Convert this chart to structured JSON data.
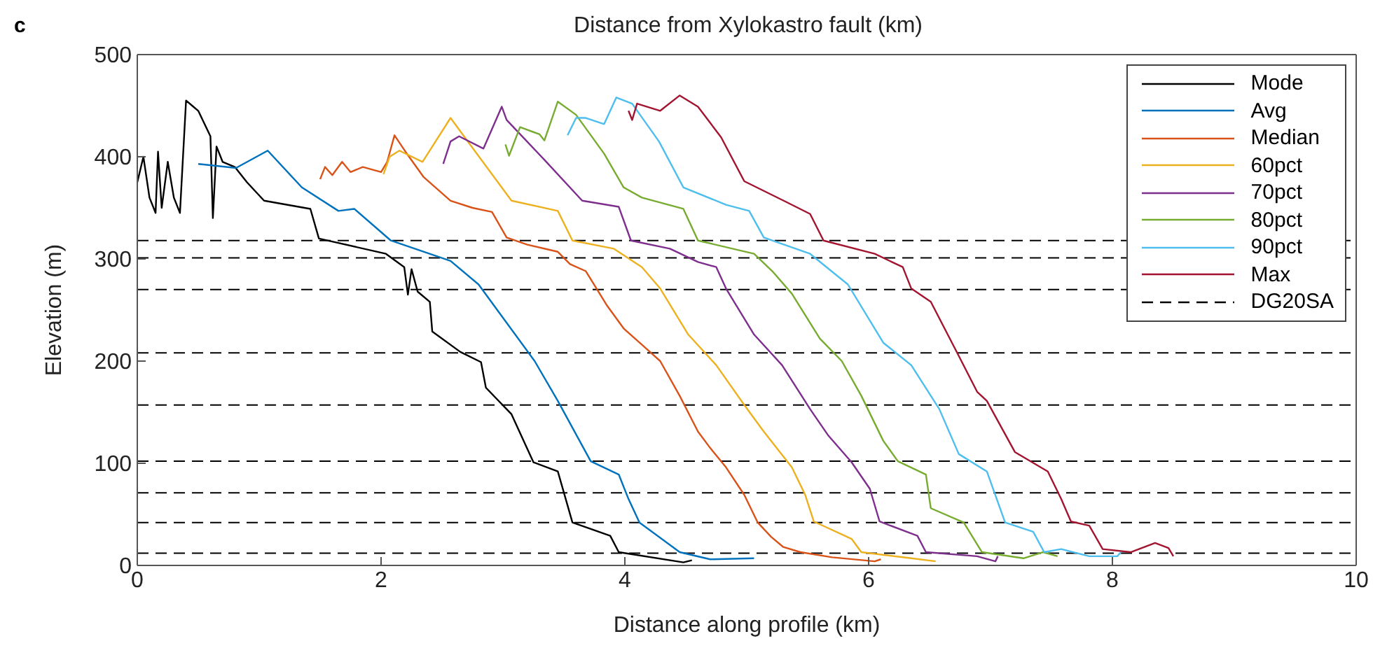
{
  "chart_data": {
    "type": "line",
    "x2label": "Distance from Xylokastro fault (km)",
    "xlabel": "Distance along profile (km)",
    "ylabel": "Elevation (m)",
    "annotations": [
      "c"
    ],
    "xlim": [
      0,
      10
    ],
    "xticks": [
      0,
      2,
      4,
      6,
      8,
      10
    ],
    "ylim": [
      0,
      500
    ],
    "yticks": [
      0,
      100,
      200,
      300,
      400,
      500
    ],
    "legend": "top right",
    "marker": "none",
    "line_style": "solid",
    "series": [
      {
        "name": "Mode",
        "color": "#000000",
        "x": [
          0,
          0.05,
          0.1,
          0.15,
          0.17,
          0.2,
          0.25,
          0.3,
          0.35,
          0.4,
          0.45,
          0.5,
          0.6,
          0.62,
          0.65,
          0.7,
          0.8,
          0.9,
          1.04,
          1.42,
          1.49,
          2.04,
          2.19,
          2.22,
          2.25,
          2.3,
          2.4,
          2.42,
          2.65,
          2.82,
          2.86,
          3.07,
          3.25,
          3.45,
          3.57,
          3.88,
          3.95,
          4.48,
          4.55
        ],
        "values": [
          375,
          400,
          360,
          345,
          405,
          350,
          395,
          360,
          345,
          455,
          450,
          445,
          420,
          340,
          410,
          395,
          390,
          375,
          357,
          349,
          320,
          305,
          292,
          265,
          290,
          268,
          258,
          229,
          209,
          199,
          174,
          148,
          101,
          92,
          42,
          29,
          13,
          3,
          5
        ]
      },
      {
        "name": "Avg",
        "color": "#0072bd",
        "x": [
          0.5,
          0.81,
          1.07,
          1.35,
          1.65,
          1.78,
          2.08,
          2.57,
          2.8,
          3.26,
          3.45,
          3.72,
          3.95,
          4.03,
          4.12,
          4.45,
          4.7,
          5.06
        ],
        "values": [
          393,
          389,
          406,
          370,
          347,
          349,
          318,
          298,
          275,
          200,
          161,
          102,
          89,
          65,
          42,
          13,
          6,
          7
        ]
      },
      {
        "name": "Median",
        "color": "#d95319",
        "x": [
          1.5,
          1.54,
          1.6,
          1.68,
          1.75,
          1.85,
          2.0,
          2.05,
          2.11,
          2.2,
          2.35,
          2.57,
          2.75,
          2.91,
          3.03,
          3.2,
          3.45,
          3.55,
          3.68,
          3.85,
          3.99,
          4.15,
          4.29,
          4.45,
          4.6,
          4.7,
          4.83,
          4.98,
          5.09,
          5.2,
          5.3,
          5.44,
          5.7,
          6.05,
          6.1
        ],
        "values": [
          378,
          390,
          382,
          395,
          385,
          390,
          385,
          395,
          421,
          405,
          380,
          357,
          350,
          346,
          321,
          314,
          307,
          295,
          288,
          255,
          232,
          215,
          200,
          166,
          131,
          115,
          96,
          69,
          42,
          28,
          18,
          13,
          8,
          4,
          6
        ]
      },
      {
        "name": "60pct",
        "color": "#edb120",
        "x": [
          2.02,
          2.07,
          2.15,
          2.34,
          2.57,
          2.73,
          3.07,
          3.45,
          3.57,
          3.91,
          4.14,
          4.29,
          4.52,
          4.75,
          4.98,
          5.14,
          5.37,
          5.48,
          5.55,
          5.86,
          5.94,
          6.35,
          6.55
        ],
        "values": [
          383,
          400,
          406,
          395,
          438,
          412,
          357,
          347,
          318,
          310,
          292,
          271,
          226,
          196,
          157,
          131,
          96,
          69,
          43,
          26,
          13,
          7,
          4
        ]
      },
      {
        "name": "70pct",
        "color": "#7e2f8e",
        "x": [
          2.51,
          2.57,
          2.64,
          2.84,
          2.99,
          3.03,
          3.34,
          3.65,
          3.95,
          4.05,
          4.37,
          4.6,
          4.75,
          4.83,
          5.06,
          5.29,
          5.52,
          5.67,
          5.86,
          6.01,
          6.09,
          6.4,
          6.47,
          6.89,
          7.04,
          7.06
        ],
        "values": [
          393,
          415,
          420,
          408,
          449,
          436,
          397,
          357,
          351,
          318,
          310,
          297,
          292,
          271,
          226,
          196,
          153,
          127,
          101,
          75,
          43,
          29,
          13,
          9,
          4,
          9
        ]
      },
      {
        "name": "80pct",
        "color": "#77ac30",
        "x": [
          3.02,
          3.05,
          3.14,
          3.3,
          3.34,
          3.45,
          3.6,
          3.83,
          3.99,
          4.14,
          4.48,
          4.6,
          5.06,
          5.21,
          5.37,
          5.6,
          5.78,
          5.94,
          6.12,
          6.24,
          6.47,
          6.51,
          6.78,
          6.93,
          7.27,
          7.43,
          7.55
        ],
        "values": [
          412,
          401,
          429,
          422,
          416,
          454,
          441,
          403,
          370,
          360,
          349,
          318,
          305,
          288,
          266,
          222,
          200,
          166,
          122,
          102,
          89,
          56,
          42,
          13,
          7,
          13,
          9
        ]
      },
      {
        "name": "90pct",
        "color": "#4dbeee",
        "x": [
          3.53,
          3.6,
          3.68,
          3.83,
          3.93,
          4.06,
          4.28,
          4.48,
          4.83,
          5.02,
          5.14,
          5.52,
          5.83,
          6.12,
          6.35,
          6.58,
          6.74,
          6.97,
          7.12,
          7.35,
          7.44,
          7.58,
          7.81,
          8.04,
          8.07
        ],
        "values": [
          421,
          438,
          438,
          432,
          458,
          452,
          415,
          370,
          353,
          347,
          321,
          305,
          275,
          218,
          196,
          153,
          109,
          92,
          42,
          33,
          13,
          16,
          9,
          9,
          13
        ]
      },
      {
        "name": "Max",
        "color": "#a2142f",
        "x": [
          4.03,
          4.06,
          4.1,
          4.29,
          4.45,
          4.6,
          4.79,
          4.98,
          5.32,
          5.52,
          5.63,
          6.05,
          6.28,
          6.35,
          6.51,
          6.74,
          6.89,
          6.97,
          7.2,
          7.47,
          7.58,
          7.66,
          7.81,
          7.92,
          8.15,
          8.35,
          8.46,
          8.5
        ],
        "values": [
          445,
          436,
          452,
          445,
          460,
          449,
          419,
          376,
          356,
          344,
          318,
          305,
          292,
          271,
          258,
          205,
          170,
          161,
          111,
          92,
          65,
          43,
          39,
          16,
          13,
          22,
          17,
          9
        ]
      }
    ],
    "ref_lines": [
      {
        "axis": "y",
        "value": 318,
        "label": "DG20SA",
        "color": "#000000",
        "line_style": "dashed"
      },
      {
        "axis": "y",
        "value": 301,
        "color": "#000000",
        "line_style": "dashed"
      },
      {
        "axis": "y",
        "value": 270,
        "color": "#000000",
        "line_style": "dashed"
      },
      {
        "axis": "y",
        "value": 208,
        "color": "#000000",
        "line_style": "dashed"
      },
      {
        "axis": "y",
        "value": 157,
        "color": "#000000",
        "line_style": "dashed"
      },
      {
        "axis": "y",
        "value": 102,
        "color": "#000000",
        "line_style": "dashed"
      },
      {
        "axis": "y",
        "value": 71,
        "color": "#000000",
        "line_style": "dashed"
      },
      {
        "axis": "y",
        "value": 42,
        "color": "#000000",
        "line_style": "dashed"
      },
      {
        "axis": "y",
        "value": 12,
        "color": "#000000",
        "line_style": "dashed"
      }
    ]
  }
}
